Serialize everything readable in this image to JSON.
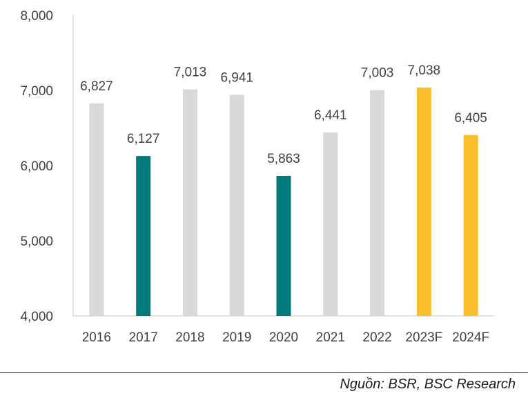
{
  "chart_data": {
    "type": "bar",
    "categories": [
      "2016",
      "2017",
      "2018",
      "2019",
      "2020",
      "2021",
      "2022",
      "2023F",
      "2024F"
    ],
    "values": [
      6827,
      6127,
      7013,
      6941,
      5863,
      6441,
      7003,
      7038,
      6405
    ],
    "value_labels": [
      "6,827",
      "6,127",
      "7,013",
      "6,941",
      "5,863",
      "6,441",
      "7,003",
      "7,038",
      "6,405"
    ],
    "bar_colors": [
      "#d9d9d9",
      "#007a7a",
      "#d9d9d9",
      "#d9d9d9",
      "#007a7a",
      "#d9d9d9",
      "#d9d9d9",
      "#fbbf2d",
      "#fbbf2d"
    ],
    "ylim": [
      4000,
      8000
    ],
    "yticks": [
      4000,
      5000,
      6000,
      7000,
      8000
    ],
    "ytick_labels": [
      "4,000",
      "5,000",
      "6,000",
      "7,000",
      "8,000"
    ],
    "title": "",
    "xlabel": "",
    "ylabel": "",
    "grid": false,
    "legend": "none"
  },
  "footer": {
    "source": "Nguồn: BSR, BSC Research"
  },
  "colors": {
    "axis": "#d9d9d9",
    "text": "#404040",
    "rule": "#1a1a1a"
  }
}
